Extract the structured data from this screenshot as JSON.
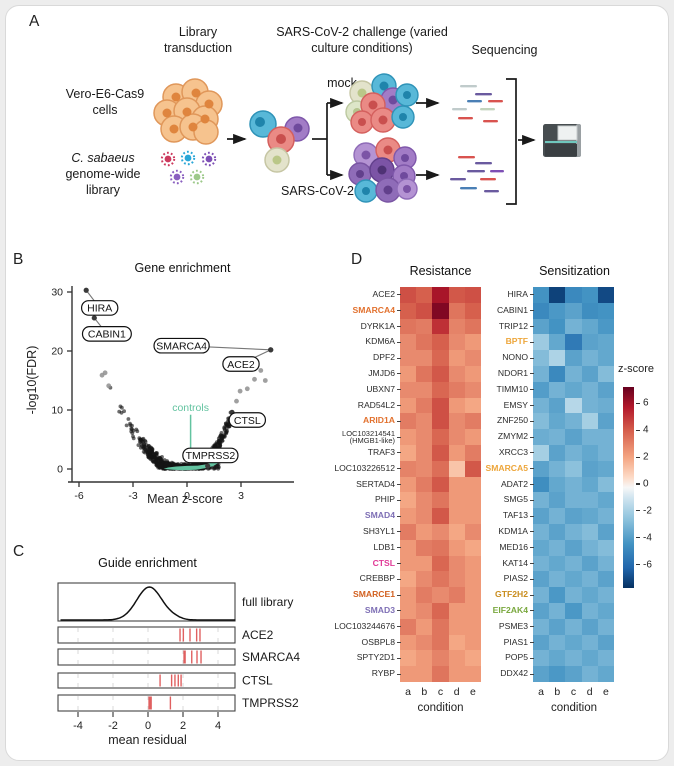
{
  "panel_labels": {
    "a": "A",
    "b": "B",
    "c": "C",
    "d": "D"
  },
  "panel_a": {
    "step1_title": "Library transduction",
    "step2_title": "SARS-CoV-2 challenge (varied culture conditions)",
    "step3_title": "Sequencing",
    "cells_label": "Vero-E6-Cas9 cells",
    "library_species": "C. sabaeus",
    "library_rest": "genome-wide library",
    "mock_label": "mock",
    "virus_label": "SARS-CoV-2"
  },
  "colorbar": {
    "title": "z-score",
    "ticks": [
      6,
      4,
      2,
      0,
      -2,
      -4,
      -6
    ],
    "range": [
      -7.5,
      7.5
    ],
    "colormap": [
      [
        0,
        "#053061"
      ],
      [
        0.1,
        "#2166ac"
      ],
      [
        0.22,
        "#4393c3"
      ],
      [
        0.35,
        "#92c5de"
      ],
      [
        0.45,
        "#d1e5f0"
      ],
      [
        0.5,
        "#f7f7f7"
      ],
      [
        0.55,
        "#fddbc7"
      ],
      [
        0.65,
        "#f4a582"
      ],
      [
        0.78,
        "#d6604d"
      ],
      [
        0.9,
        "#b2182b"
      ],
      [
        1,
        "#67001f"
      ]
    ]
  },
  "chart_data": [
    {
      "type": "scatter",
      "panel": "B",
      "title": "Gene enrichment",
      "xlabel": "Mean z-score",
      "ylabel": "-log10(FDR)",
      "xlim": [
        -6.5,
        5.5
      ],
      "ylim": [
        -2,
        32
      ],
      "xticks": [
        -6,
        -3,
        0,
        3
      ],
      "yticks": [
        0,
        10,
        20,
        30
      ],
      "labeled_points": [
        {
          "gene": "HIRA",
          "x": -5.6,
          "y": 30.3,
          "lx": -4.85,
          "ly": 27.3
        },
        {
          "gene": "CABIN1",
          "x": -5.15,
          "y": 25.6,
          "lx": -4.45,
          "ly": 22.9
        },
        {
          "gene": "SMARCA4",
          "x": 4.65,
          "y": 20.2,
          "lx": -0.3,
          "ly": 20.9
        },
        {
          "gene": "ACE2",
          "x": 4.65,
          "y": 20.2,
          "lx": 3.0,
          "ly": 17.8
        },
        {
          "gene": "CTSL",
          "x": 2.5,
          "y": 9.6,
          "lx": 3.35,
          "ly": 8.3
        },
        {
          "gene": "TMPRSS2",
          "x": 1.15,
          "y": 0.5,
          "lx": 1.3,
          "ly": 2.3
        }
      ],
      "outlier_points": [
        {
          "x": 2.55,
          "y": 9.3
        },
        {
          "x": 2.75,
          "y": 11.5
        },
        {
          "x": 2.95,
          "y": 13.2
        },
        {
          "x": 3.35,
          "y": 13.6
        },
        {
          "x": 3.75,
          "y": 15.2
        },
        {
          "x": 4.1,
          "y": 16.7
        },
        {
          "x": 4.35,
          "y": 15.0
        },
        {
          "x": -4.55,
          "y": 16.3
        },
        {
          "x": -4.72,
          "y": 15.9
        },
        {
          "x": -4.35,
          "y": 14.1
        }
      ],
      "controls": {
        "label": "controls",
        "color": "#63c3a0",
        "x_range": [
          -1.3,
          2.2
        ]
      }
    },
    {
      "type": "density_rows",
      "panel": "C",
      "title": "Guide enrichment",
      "xlabel": "mean residual",
      "xlim": [
        -5.2,
        5.2
      ],
      "xticks": [
        -4,
        -2,
        0,
        2,
        4
      ],
      "tick_color": "#e06060",
      "rows": [
        {
          "label": "full library",
          "kind": "density",
          "mean": 0.08,
          "sd": 0.72
        },
        {
          "label": "ACE2",
          "kind": "ticks",
          "ticks": [
            1.83,
            2.02,
            2.4,
            2.78,
            2.97
          ]
        },
        {
          "label": "SMARCA4",
          "kind": "ticks",
          "ticks": [
            2.06,
            2.12,
            2.5,
            2.8,
            3.03
          ]
        },
        {
          "label": "CTSL",
          "kind": "ticks",
          "ticks": [
            0.69,
            1.35,
            1.54,
            1.73,
            1.89
          ]
        },
        {
          "label": "TMPRSS2",
          "kind": "ticks",
          "ticks": [
            0.06,
            0.12,
            0.18,
            1.28
          ]
        }
      ]
    },
    {
      "type": "heatmap",
      "panel": "D",
      "title": "Resistance",
      "xlabel": "condition",
      "columns": [
        "a",
        "b",
        "c",
        "d",
        "e"
      ],
      "genes": [
        {
          "n": "ACE2"
        },
        {
          "n": "SMARCA4",
          "c": "#e2712e"
        },
        {
          "n": "DYRK1A"
        },
        {
          "n": "KDM6A"
        },
        {
          "n": "DPF2"
        },
        {
          "n": "JMJD6"
        },
        {
          "n": "UBXN7"
        },
        {
          "n": "RAD54L2"
        },
        {
          "n": "ARID1A",
          "c": "#e2712e"
        },
        {
          "n": "LOC103214541\n(HMGB1-like)"
        },
        {
          "n": "TRAF3"
        },
        {
          "n": "LOC103226512"
        },
        {
          "n": "SERTAD4"
        },
        {
          "n": "PHIP"
        },
        {
          "n": "SMAD4",
          "c": "#7e6fb5"
        },
        {
          "n": "SH3YL1"
        },
        {
          "n": "LDB1"
        },
        {
          "n": "CTSL",
          "c": "#e13a97"
        },
        {
          "n": "CREBBP"
        },
        {
          "n": "SMARCE1",
          "c": "#d2601f"
        },
        {
          "n": "SMAD3",
          "c": "#7e6fb5"
        },
        {
          "n": "LOC103244676"
        },
        {
          "n": "OSBPL8"
        },
        {
          "n": "SPTY2D1"
        },
        {
          "n": "RYBP"
        }
      ],
      "values": [
        [
          4.6,
          4.2,
          6.2,
          4.4,
          4.6
        ],
        [
          4.2,
          4.6,
          7.0,
          3.6,
          4.2
        ],
        [
          3.6,
          3.4,
          5.4,
          3.2,
          3.6
        ],
        [
          3.0,
          3.6,
          4.2,
          3.0,
          2.6
        ],
        [
          3.0,
          3.0,
          4.0,
          2.6,
          3.0
        ],
        [
          2.6,
          3.6,
          4.4,
          3.0,
          2.6
        ],
        [
          3.0,
          3.0,
          4.0,
          3.4,
          3.0
        ],
        [
          2.6,
          3.4,
          4.6,
          2.6,
          2.2
        ],
        [
          3.4,
          3.0,
          4.6,
          3.0,
          3.4
        ],
        [
          2.6,
          3.0,
          4.0,
          3.0,
          2.6
        ],
        [
          2.2,
          3.0,
          4.4,
          2.6,
          3.4
        ],
        [
          3.2,
          3.0,
          3.8,
          1.4,
          4.4
        ],
        [
          2.6,
          3.4,
          4.4,
          2.6,
          2.6
        ],
        [
          2.2,
          3.0,
          3.6,
          2.6,
          2.6
        ],
        [
          2.6,
          3.0,
          4.4,
          2.6,
          2.6
        ],
        [
          3.4,
          2.6,
          3.0,
          2.2,
          3.0
        ],
        [
          2.6,
          3.4,
          3.6,
          2.6,
          2.2
        ],
        [
          2.6,
          2.6,
          4.0,
          3.0,
          2.6
        ],
        [
          2.2,
          3.0,
          3.6,
          3.0,
          2.6
        ],
        [
          2.6,
          3.4,
          3.0,
          3.4,
          2.6
        ],
        [
          2.6,
          3.0,
          4.0,
          2.6,
          2.6
        ],
        [
          3.4,
          2.6,
          3.6,
          2.6,
          2.6
        ],
        [
          2.6,
          3.0,
          3.6,
          2.2,
          2.6
        ],
        [
          2.2,
          2.6,
          3.2,
          2.6,
          2.2
        ],
        [
          2.6,
          2.6,
          3.6,
          2.6,
          2.6
        ]
      ]
    },
    {
      "type": "heatmap",
      "panel": "D",
      "title": "Sensitization",
      "xlabel": "condition",
      "columns": [
        "a",
        "b",
        "c",
        "d",
        "e"
      ],
      "genes": [
        {
          "n": "HIRA"
        },
        {
          "n": "CABIN1"
        },
        {
          "n": "TRIP12"
        },
        {
          "n": "BPTF",
          "c": "#eda63b"
        },
        {
          "n": "NONO"
        },
        {
          "n": "NDOR1"
        },
        {
          "n": "TIMM10"
        },
        {
          "n": "EMSY"
        },
        {
          "n": "ZNF250"
        },
        {
          "n": "ZMYM2"
        },
        {
          "n": "XRCC3"
        },
        {
          "n": "SMARCA5",
          "c": "#eda63b"
        },
        {
          "n": "ADAT2"
        },
        {
          "n": "SMG5"
        },
        {
          "n": "TAF13"
        },
        {
          "n": "KDM1A"
        },
        {
          "n": "MED16"
        },
        {
          "n": "KAT14"
        },
        {
          "n": "PIAS2"
        },
        {
          "n": "GTF2H2",
          "c": "#c98d1e"
        },
        {
          "n": "EIF2AK4",
          "c": "#7aa83f"
        },
        {
          "n": "PSME3"
        },
        {
          "n": "PIAS1"
        },
        {
          "n": "POP5"
        },
        {
          "n": "DDX42"
        }
      ],
      "values": [
        [
          -4.2,
          -7.0,
          -4.6,
          -4.2,
          -6.8
        ],
        [
          -4.6,
          -4.0,
          -3.6,
          -4.4,
          -4.2
        ],
        [
          -3.6,
          -4.2,
          -3.0,
          -3.4,
          -4.0
        ],
        [
          -2.0,
          -3.4,
          -5.2,
          -3.6,
          -3.4
        ],
        [
          -2.6,
          -1.6,
          -3.6,
          -3.0,
          -3.4
        ],
        [
          -3.0,
          -4.6,
          -3.0,
          -3.6,
          -2.6
        ],
        [
          -3.8,
          -3.0,
          -3.4,
          -3.0,
          -3.6
        ],
        [
          -3.0,
          -3.6,
          -1.4,
          -3.0,
          -3.2
        ],
        [
          -2.6,
          -3.4,
          -3.0,
          -1.8,
          -3.6
        ],
        [
          -3.2,
          -3.0,
          -3.6,
          -3.0,
          -3.0
        ],
        [
          -1.8,
          -3.6,
          -3.0,
          -3.4,
          -3.0
        ],
        [
          -3.6,
          -3.0,
          -2.4,
          -3.6,
          -3.4
        ],
        [
          -4.4,
          -3.4,
          -3.0,
          -3.4,
          -2.6
        ],
        [
          -3.0,
          -3.6,
          -3.0,
          -3.0,
          -3.4
        ],
        [
          -3.6,
          -3.0,
          -3.6,
          -3.4,
          -3.0
        ],
        [
          -3.0,
          -3.6,
          -3.0,
          -2.6,
          -3.6
        ],
        [
          -3.4,
          -3.0,
          -3.6,
          -3.0,
          -2.6
        ],
        [
          -3.0,
          -3.4,
          -3.0,
          -3.6,
          -3.0
        ],
        [
          -3.6,
          -3.0,
          -3.4,
          -3.0,
          -3.6
        ],
        [
          -3.0,
          -4.0,
          -3.0,
          -3.4,
          -3.0
        ],
        [
          -3.6,
          -3.0,
          -4.0,
          -3.0,
          -3.4
        ],
        [
          -3.0,
          -3.6,
          -3.0,
          -3.6,
          -3.0
        ],
        [
          -3.6,
          -3.0,
          -3.4,
          -3.0,
          -3.6
        ],
        [
          -3.0,
          -3.4,
          -3.0,
          -3.4,
          -3.0
        ],
        [
          -3.6,
          -4.0,
          -3.6,
          -3.0,
          -3.4
        ]
      ]
    }
  ]
}
